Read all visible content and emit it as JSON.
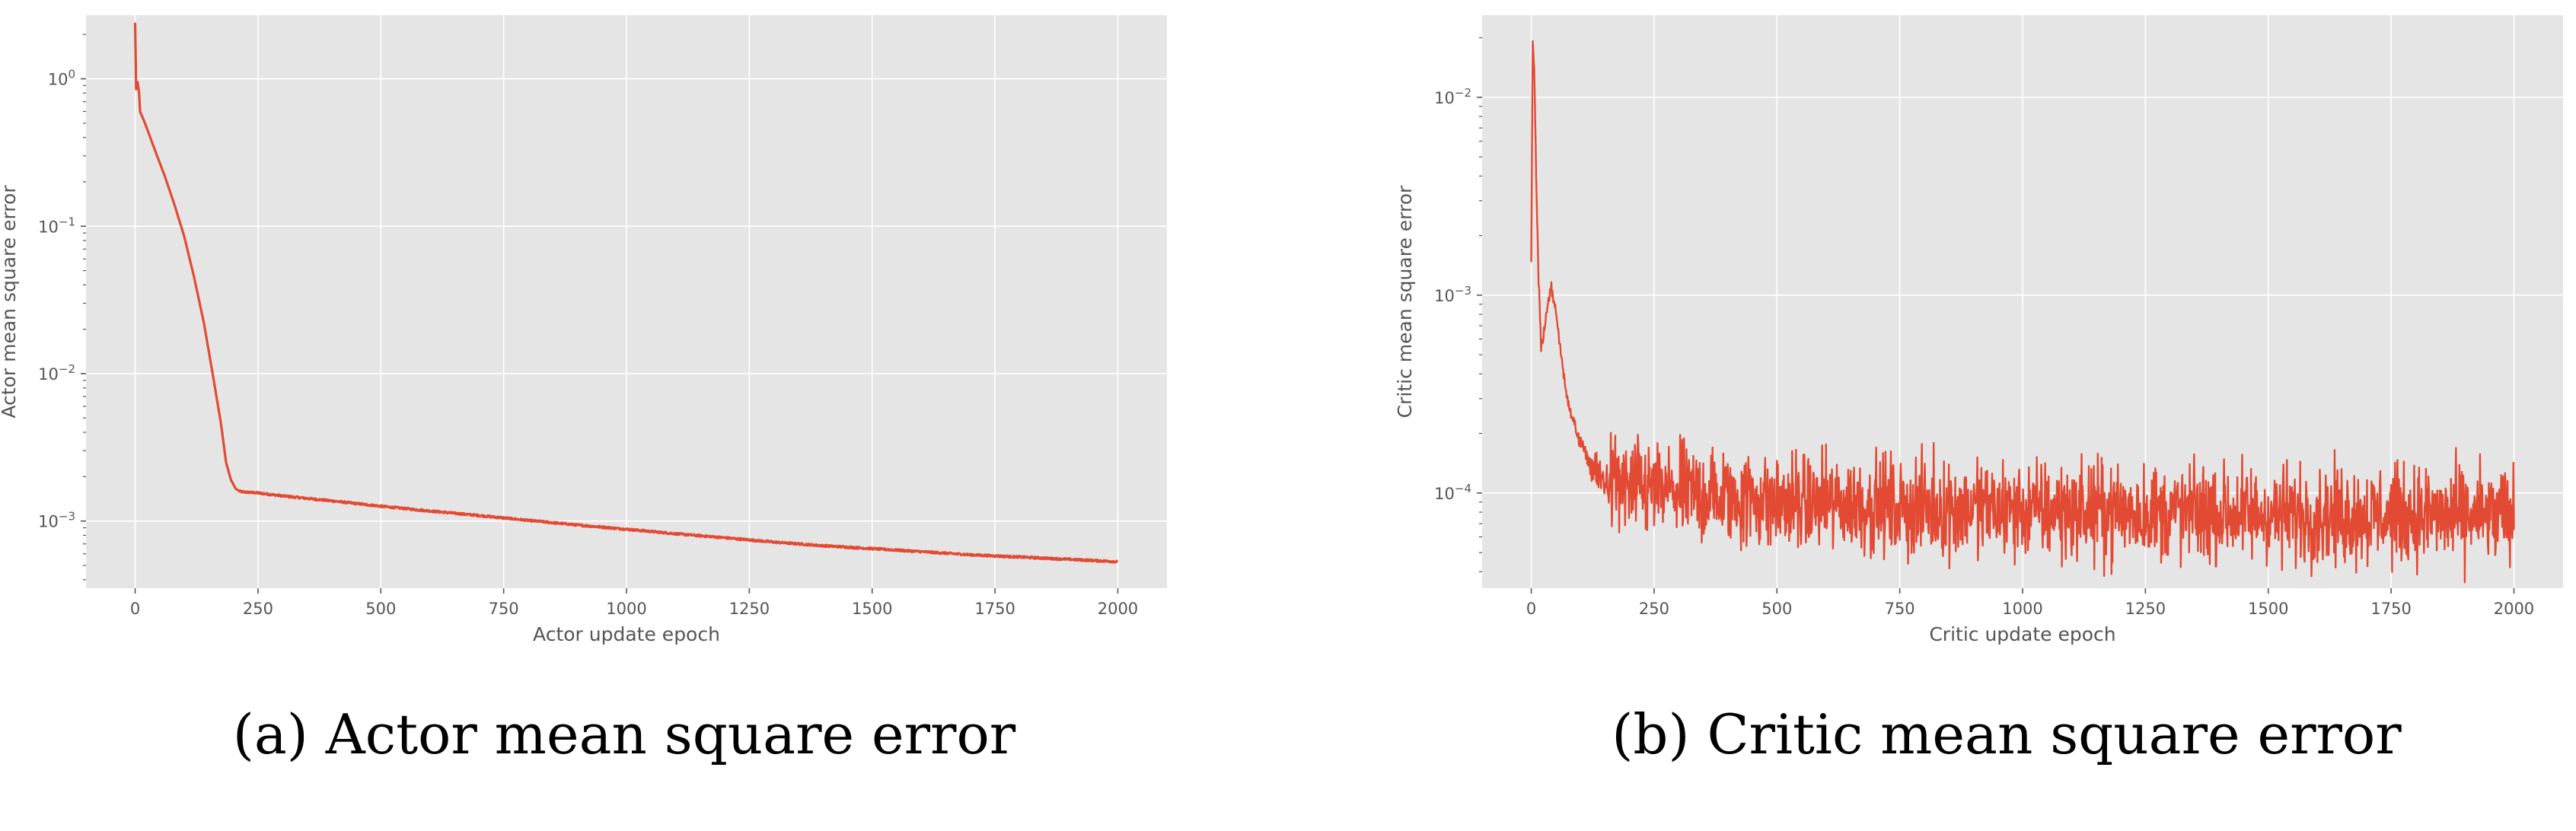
{
  "chart_data": [
    {
      "type": "line",
      "caption": "(a) Actor mean square error",
      "xlabel": "Actor update epoch",
      "ylabel": "Actor mean square error",
      "yscale": "log",
      "xlim": [
        -100,
        2100
      ],
      "ylim": [
        0.00035,
        2.7
      ],
      "xticks": [
        0,
        250,
        500,
        750,
        1000,
        1250,
        1500,
        1750,
        2000
      ],
      "xtick_labels": [
        "0",
        "250",
        "500",
        "750",
        "1000",
        "1250",
        "1500",
        "1750",
        "2000"
      ],
      "yticks": [
        1,
        0.1,
        0.01,
        0.001
      ],
      "ytick_labels": [
        "10^0",
        "10^-1",
        "10^-2",
        "10^-3"
      ],
      "grid": true,
      "color": "#e24a33",
      "background": "#e5e5e5",
      "x": [
        0,
        2,
        5,
        8,
        10,
        20,
        40,
        60,
        80,
        100,
        120,
        140,
        160,
        175,
        185,
        195,
        205,
        215,
        250,
        300,
        400,
        500,
        600,
        700,
        800,
        900,
        1000,
        1100,
        1200,
        1300,
        1400,
        1500,
        1600,
        1700,
        1800,
        1900,
        2000
      ],
      "y": [
        2.4,
        0.85,
        0.95,
        0.8,
        0.6,
        0.5,
        0.33,
        0.22,
        0.14,
        0.085,
        0.045,
        0.022,
        0.009,
        0.0045,
        0.0025,
        0.0019,
        0.00165,
        0.00158,
        0.00155,
        0.00148,
        0.00137,
        0.00126,
        0.00117,
        0.00109,
        0.00101,
        0.00094,
        0.00088,
        0.00082,
        0.00077,
        0.00072,
        0.00068,
        0.00065,
        0.00062,
        0.00059,
        0.00057,
        0.00055,
        0.00053
      ]
    },
    {
      "type": "line",
      "caption": "(b) Critic mean square error",
      "xlabel": "Critic update epoch",
      "ylabel": "Critic mean square error",
      "yscale": "log",
      "xlim": [
        -100,
        2100
      ],
      "ylim": [
        3.3e-05,
        0.026
      ],
      "xticks": [
        0,
        250,
        500,
        750,
        1000,
        1250,
        1500,
        1750,
        2000
      ],
      "xtick_labels": [
        "0",
        "250",
        "500",
        "750",
        "1000",
        "1250",
        "1500",
        "1750",
        "2000"
      ],
      "yticks": [
        0.01,
        0.001,
        0.0001
      ],
      "ytick_labels": [
        "10^-2",
        "10^-3",
        "10^-4"
      ],
      "grid": true,
      "color": "#e24a33",
      "background": "#e5e5e5",
      "noisy": true,
      "x": [
        0,
        3,
        6,
        10,
        15,
        20,
        25,
        30,
        40,
        50,
        60,
        70,
        80,
        100,
        120,
        140,
        160,
        200,
        300,
        400,
        500,
        750,
        1000,
        1250,
        1500,
        1750,
        2000
      ],
      "y": [
        0.0015,
        0.019,
        0.014,
        0.004,
        0.0012,
        0.00055,
        0.0006,
        0.0008,
        0.0011,
        0.00085,
        0.0005,
        0.00035,
        0.00025,
        0.00018,
        0.00014,
        0.00012,
        0.00011,
        0.000105,
        0.0001,
        9.5e-05,
        9e-05,
        8.5e-05,
        8.2e-05,
        8e-05,
        7.8e-05,
        7.7e-05,
        7.6e-05
      ]
    }
  ]
}
